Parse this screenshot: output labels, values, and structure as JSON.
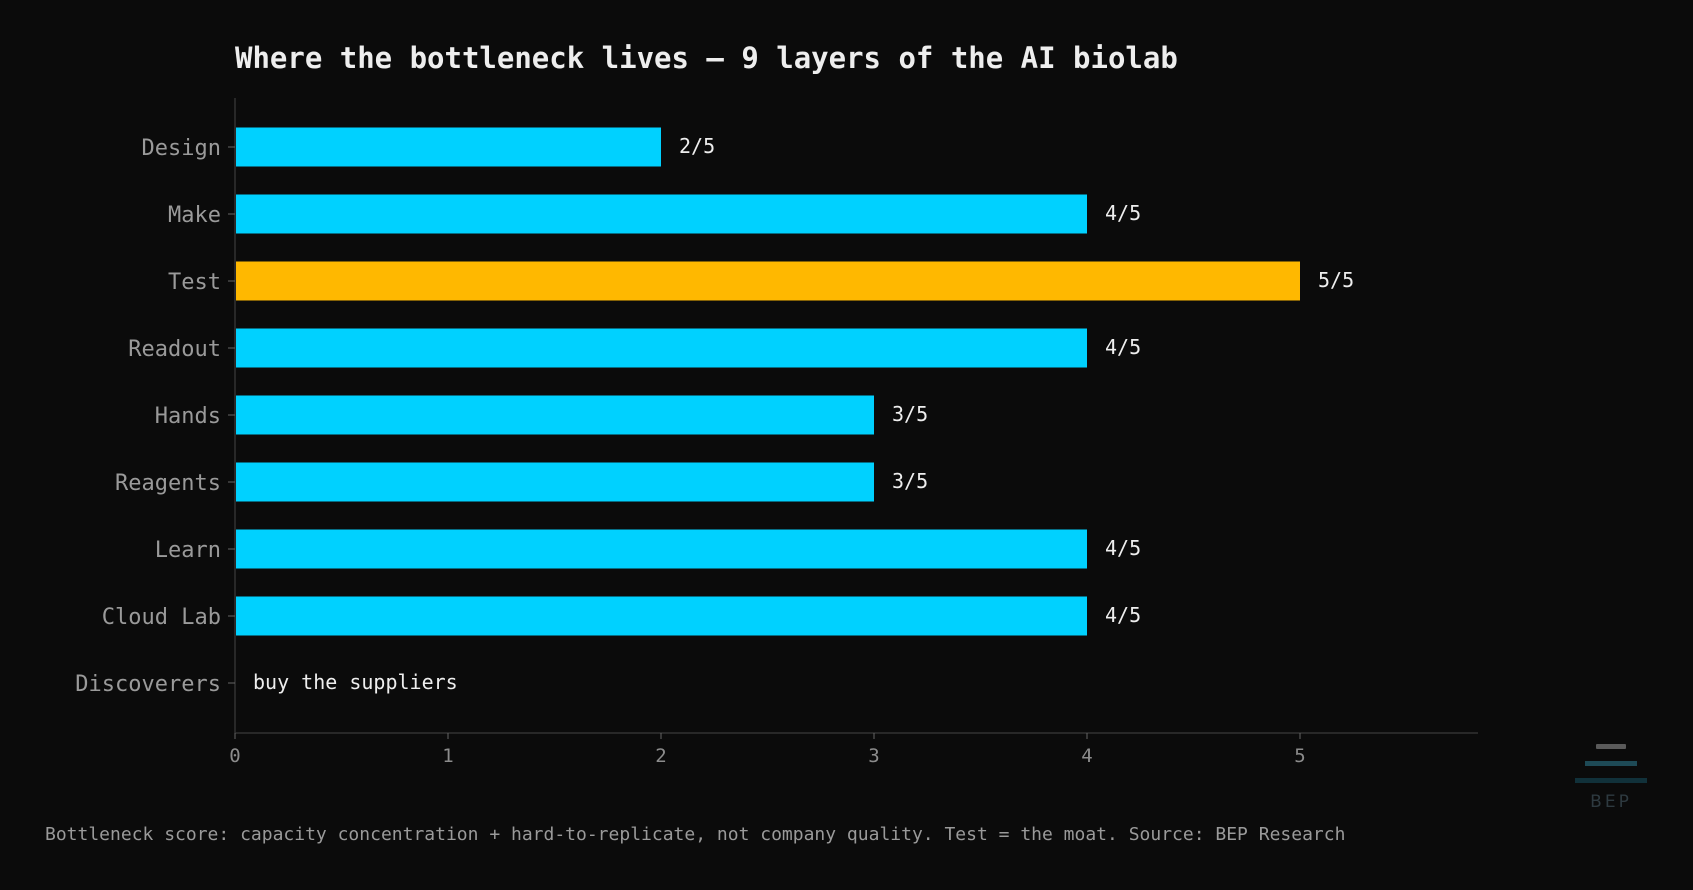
{
  "chart_data": {
    "type": "bar",
    "orientation": "horizontal",
    "title": "Where the bottleneck lives — 9 layers of the AI biolab",
    "categories": [
      "Design",
      "Make",
      "Test",
      "Readout",
      "Hands",
      "Reagents",
      "Learn",
      "Cloud Lab",
      "Discoverers"
    ],
    "values": [
      2,
      4,
      5,
      4,
      3,
      3,
      4,
      4,
      null
    ],
    "data_labels": [
      "2/5",
      "4/5",
      "5/5",
      "4/5",
      "3/5",
      "3/5",
      "4/5",
      "4/5",
      "buy the suppliers"
    ],
    "highlight_category": "Test",
    "xlim": [
      0,
      6
    ],
    "xticks": [
      0,
      1,
      2,
      3,
      4,
      5
    ],
    "xlabel": "",
    "ylabel": "",
    "grid": false,
    "legend": "none",
    "colors": {
      "default_bar": "#00d1ff",
      "highlight_bar": "#ffb800",
      "background": "#0b0b0b",
      "axis": "#333333"
    }
  },
  "footnote": "Bottleneck score: capacity concentration + hard-to-replicate, not company quality.  Test = the moat.  Source: BEP Research",
  "logo": {
    "text": "BEP",
    "icon": "stacked-bars-logo-icon"
  }
}
